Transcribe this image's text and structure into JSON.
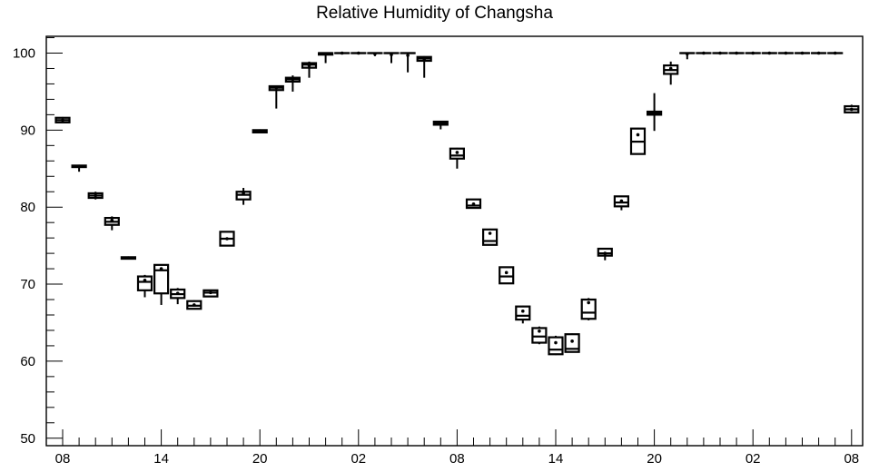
{
  "chart_data": {
    "type": "boxplot",
    "title": "Relative Humidity of Changsha",
    "xlabel": "",
    "ylabel": "",
    "ylim": [
      50,
      102
    ],
    "y_ticks": [
      50,
      60,
      70,
      80,
      90,
      100
    ],
    "x_ticks": [
      "08",
      "14",
      "20",
      "02",
      "08",
      "14",
      "20",
      "02",
      "08"
    ],
    "x_tick_positions_hours": [
      0,
      6,
      12,
      18,
      24,
      30,
      36,
      42,
      48
    ],
    "grid": false,
    "legend": "none",
    "boxes": [
      {
        "hour": 0,
        "min": 91.0,
        "q1": 91.0,
        "median": 91.3,
        "q3": 91.6,
        "max": 91.7,
        "mean": 91.3
      },
      {
        "hour": 1,
        "min": 84.6,
        "q1": 85.2,
        "median": 85.3,
        "q3": 85.4,
        "max": 85.5,
        "mean": 85.3
      },
      {
        "hour": 2,
        "min": 81.0,
        "q1": 81.2,
        "median": 81.5,
        "q3": 81.8,
        "max": 82.0,
        "mean": 81.5
      },
      {
        "hour": 3,
        "min": 77.0,
        "q1": 77.7,
        "median": 78.1,
        "q3": 78.6,
        "max": 78.8,
        "mean": 78.3
      },
      {
        "hour": 4,
        "min": 73.2,
        "q1": 73.3,
        "median": 73.4,
        "q3": 73.5,
        "max": 73.6,
        "mean": 73.4
      },
      {
        "hour": 5,
        "min": 68.3,
        "q1": 69.2,
        "median": 70.3,
        "q3": 71.0,
        "max": 71.2,
        "mean": 70.5
      },
      {
        "hour": 6,
        "min": 67.3,
        "q1": 68.8,
        "median": 71.8,
        "q3": 72.5,
        "max": 72.6,
        "mean": 72.0
      },
      {
        "hour": 7,
        "min": 67.4,
        "q1": 68.2,
        "median": 68.7,
        "q3": 69.3,
        "max": 69.5,
        "mean": 68.8
      },
      {
        "hour": 8,
        "min": 66.8,
        "q1": 66.8,
        "median": 67.2,
        "q3": 67.8,
        "max": 67.9,
        "mean": 67.3
      },
      {
        "hour": 9,
        "min": 68.4,
        "q1": 68.4,
        "median": 68.9,
        "q3": 69.2,
        "max": 69.3,
        "mean": 68.9
      },
      {
        "hour": 10,
        "min": 75.0,
        "q1": 75.0,
        "median": 75.9,
        "q3": 76.8,
        "max": 76.9,
        "mean": 75.9
      },
      {
        "hour": 11,
        "min": 80.3,
        "q1": 81.0,
        "median": 81.6,
        "q3": 82.0,
        "max": 82.5,
        "mean": 81.8
      },
      {
        "hour": 12,
        "min": 89.6,
        "q1": 89.7,
        "median": 89.9,
        "q3": 90.0,
        "max": 90.1,
        "mean": 89.9
      },
      {
        "hour": 13,
        "min": 92.8,
        "q1": 95.2,
        "median": 95.5,
        "q3": 95.7,
        "max": 95.8,
        "mean": 95.5
      },
      {
        "hour": 14,
        "min": 95.0,
        "q1": 96.3,
        "median": 96.6,
        "q3": 96.8,
        "max": 97.1,
        "mean": 96.6
      },
      {
        "hour": 15,
        "min": 96.8,
        "q1": 98.1,
        "median": 98.5,
        "q3": 98.7,
        "max": 98.9,
        "mean": 98.4
      },
      {
        "hour": 16,
        "min": 98.7,
        "q1": 99.8,
        "median": 100.0,
        "q3": 100.0,
        "max": 100.0,
        "mean": 99.9
      },
      {
        "hour": 17,
        "min": 100.0,
        "q1": 100.0,
        "median": 100.0,
        "q3": 100.0,
        "max": 100.0,
        "mean": 100.0
      },
      {
        "hour": 18,
        "min": 100.0,
        "q1": 100.0,
        "median": 100.0,
        "q3": 100.0,
        "max": 100.0,
        "mean": 100.0
      },
      {
        "hour": 19,
        "min": 99.6,
        "q1": 100.0,
        "median": 100.0,
        "q3": 100.0,
        "max": 100.0,
        "mean": 99.9
      },
      {
        "hour": 20,
        "min": 98.7,
        "q1": 100.0,
        "median": 100.0,
        "q3": 100.0,
        "max": 100.0,
        "mean": 99.8
      },
      {
        "hour": 21,
        "min": 97.5,
        "q1": 100.0,
        "median": 100.0,
        "q3": 100.0,
        "max": 100.0,
        "mean": 99.7
      },
      {
        "hour": 22,
        "min": 96.8,
        "q1": 99.0,
        "median": 99.3,
        "q3": 99.5,
        "max": 99.6,
        "mean": 99.2
      },
      {
        "hour": 23,
        "min": 90.1,
        "q1": 90.7,
        "median": 90.9,
        "q3": 91.1,
        "max": 91.2,
        "mean": 90.9
      },
      {
        "hour": 24,
        "min": 85.0,
        "q1": 86.3,
        "median": 86.7,
        "q3": 87.6,
        "max": 87.7,
        "mean": 87.1
      },
      {
        "hour": 25,
        "min": 79.9,
        "q1": 79.9,
        "median": 80.2,
        "q3": 81.0,
        "max": 81.0,
        "mean": 80.4
      },
      {
        "hour": 26,
        "min": 75.1,
        "q1": 75.1,
        "median": 75.6,
        "q3": 77.1,
        "max": 77.2,
        "mean": 76.6
      },
      {
        "hour": 27,
        "min": 70.1,
        "q1": 70.1,
        "median": 71.0,
        "q3": 72.2,
        "max": 72.3,
        "mean": 71.5
      },
      {
        "hour": 28,
        "min": 64.9,
        "q1": 65.4,
        "median": 65.9,
        "q3": 67.1,
        "max": 67.2,
        "mean": 66.5
      },
      {
        "hour": 29,
        "min": 62.2,
        "q1": 62.4,
        "median": 63.2,
        "q3": 64.3,
        "max": 64.5,
        "mean": 63.9
      },
      {
        "hour": 30,
        "min": 60.8,
        "q1": 60.9,
        "median": 61.5,
        "q3": 63.1,
        "max": 63.3,
        "mean": 62.4
      },
      {
        "hour": 31,
        "min": 61.2,
        "q1": 61.2,
        "median": 61.6,
        "q3": 63.5,
        "max": 63.6,
        "mean": 62.6
      },
      {
        "hour": 32,
        "min": 65.3,
        "q1": 65.5,
        "median": 66.3,
        "q3": 68.0,
        "max": 68.2,
        "mean": 67.6
      },
      {
        "hour": 33,
        "min": 73.1,
        "q1": 73.7,
        "median": 74.0,
        "q3": 74.6,
        "max": 74.7,
        "mean": 74.0
      },
      {
        "hour": 34,
        "min": 79.6,
        "q1": 80.1,
        "median": 80.6,
        "q3": 81.4,
        "max": 81.5,
        "mean": 80.8
      },
      {
        "hour": 35,
        "min": 86.9,
        "q1": 86.9,
        "median": 88.5,
        "q3": 90.2,
        "max": 90.3,
        "mean": 89.4
      },
      {
        "hour": 36,
        "min": 89.9,
        "q1": 92.0,
        "median": 92.2,
        "q3": 92.4,
        "max": 94.8,
        "mean": 92.3
      },
      {
        "hour": 37,
        "min": 95.9,
        "q1": 97.3,
        "median": 97.8,
        "q3": 98.4,
        "max": 98.9,
        "mean": 98.0
      },
      {
        "hour": 38,
        "min": 99.2,
        "q1": 100.0,
        "median": 100.0,
        "q3": 100.0,
        "max": 100.0,
        "mean": 99.9
      },
      {
        "hour": 39,
        "min": 100.0,
        "q1": 100.0,
        "median": 100.0,
        "q3": 100.0,
        "max": 100.0,
        "mean": 100.0
      },
      {
        "hour": 40,
        "min": 100.0,
        "q1": 100.0,
        "median": 100.0,
        "q3": 100.0,
        "max": 100.0,
        "mean": 100.0
      },
      {
        "hour": 41,
        "min": 100.0,
        "q1": 100.0,
        "median": 100.0,
        "q3": 100.0,
        "max": 100.0,
        "mean": 100.0
      },
      {
        "hour": 42,
        "min": 100.0,
        "q1": 100.0,
        "median": 100.0,
        "q3": 100.0,
        "max": 100.0,
        "mean": 100.0
      },
      {
        "hour": 43,
        "min": 100.0,
        "q1": 100.0,
        "median": 100.0,
        "q3": 100.0,
        "max": 100.0,
        "mean": 100.0
      },
      {
        "hour": 44,
        "min": 100.0,
        "q1": 100.0,
        "median": 100.0,
        "q3": 100.0,
        "max": 100.0,
        "mean": 100.0
      },
      {
        "hour": 45,
        "min": 100.0,
        "q1": 100.0,
        "median": 100.0,
        "q3": 100.0,
        "max": 100.0,
        "mean": 100.0
      },
      {
        "hour": 46,
        "min": 100.0,
        "q1": 100.0,
        "median": 100.0,
        "q3": 100.0,
        "max": 100.0,
        "mean": 100.0
      },
      {
        "hour": 47,
        "min": 100.0,
        "q1": 100.0,
        "median": 100.0,
        "q3": 100.0,
        "max": 100.0,
        "mean": 100.0
      },
      {
        "hour": 48,
        "min": 92.3,
        "q1": 92.3,
        "median": 92.7,
        "q3": 93.1,
        "max": 93.3,
        "mean": 92.7
      }
    ]
  }
}
